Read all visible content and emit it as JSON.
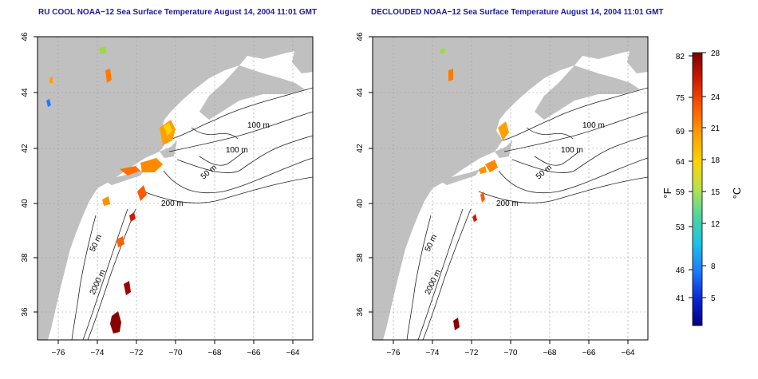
{
  "maps": [
    {
      "title": "RU COOL NOAA−12 Sea Surface Temperature August 14, 2004 11:01 GMT",
      "x_ticks": [
        "−76",
        "−74",
        "−72",
        "−70",
        "−68",
        "−66",
        "−64"
      ],
      "y_ticks": [
        "46",
        "44",
        "42",
        "40",
        "38",
        "36"
      ],
      "contour_labels": [
        "100 m",
        "100 m",
        "50 m",
        "200 m",
        "50 m",
        "2000 m"
      ]
    },
    {
      "title": "DECLOUDED NOAA−12 Sea Surface Temperature August 14, 2004 11:01 GMT",
      "x_ticks": [
        "−76",
        "−74",
        "−72",
        "−70",
        "−68",
        "−66",
        "−64"
      ],
      "y_ticks": [
        "46",
        "44",
        "42",
        "40",
        "38",
        "36"
      ],
      "contour_labels": [
        "100 m",
        "100 m",
        "50 m",
        "200 m",
        "50 m",
        "2000 m"
      ]
    }
  ],
  "colorbar": {
    "fahrenheit_ticks": [
      "82",
      "75",
      "69",
      "64",
      "59",
      "53",
      "46",
      "41"
    ],
    "celsius_ticks": [
      "28",
      "24",
      "21",
      "18",
      "15",
      "12",
      "8",
      "5"
    ],
    "fahrenheit_unit": "°F",
    "celsius_unit": "°C",
    "gradient_colors": [
      "#7f0000",
      "#d41a00",
      "#ff5a00",
      "#ff9f00",
      "#ffd400",
      "#b5e34a",
      "#4ad6a0",
      "#19c3e6",
      "#1b7cff",
      "#0a28d8",
      "#000080"
    ]
  }
}
